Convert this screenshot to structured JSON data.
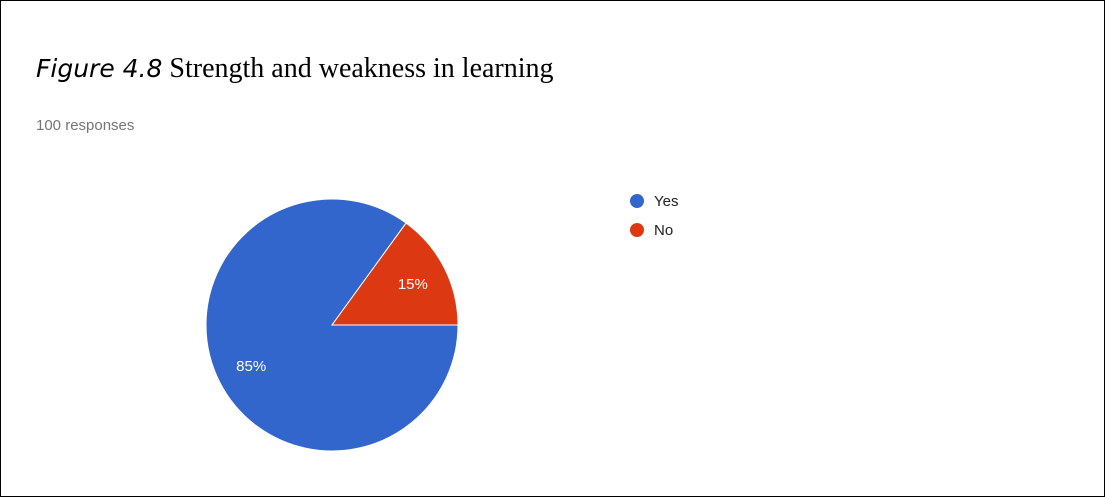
{
  "figure_label": "Figure 4.8",
  "title": "Strength and weakness in learning",
  "subtitle": "100 responses",
  "chart_data": {
    "type": "pie",
    "categories": [
      "Yes",
      "No"
    ],
    "values": [
      85,
      15
    ],
    "labels": [
      "85%",
      "15%"
    ],
    "colors": [
      "#3366cc",
      "#dc3912"
    ],
    "legend_position": "right"
  }
}
